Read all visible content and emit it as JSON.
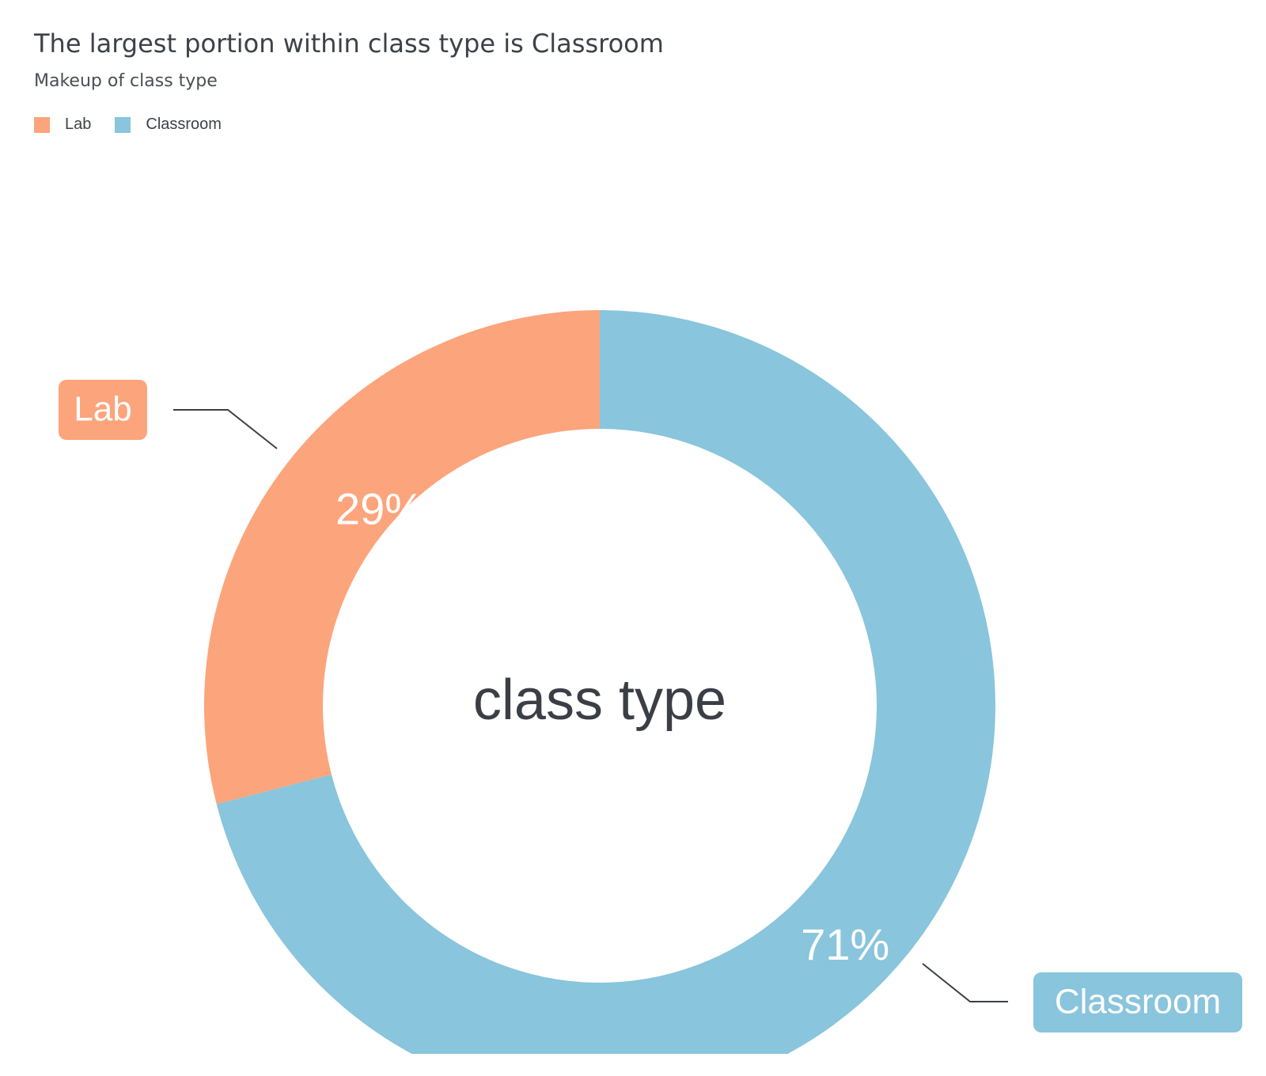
{
  "title": "The largest portion within class type is Classroom",
  "subtitle": "Makeup of class type",
  "chart_data": {
    "type": "pie",
    "variant": "donut",
    "center_label": "class type",
    "legend_placement": "top-left",
    "slices": [
      {
        "name": "Lab",
        "value": 29,
        "label": "29%",
        "color": "#fca47c"
      },
      {
        "name": "Classroom",
        "value": 71,
        "label": "71%",
        "color": "#89c5dc"
      }
    ]
  }
}
